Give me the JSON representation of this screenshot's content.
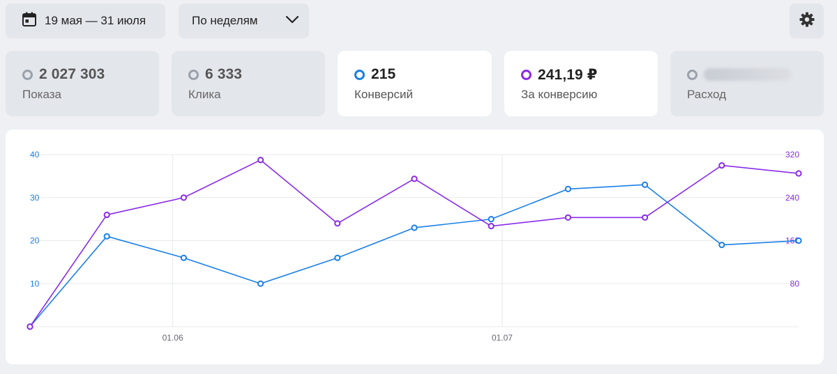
{
  "toolbar": {
    "date_range_label": "19 мая — 31 июля",
    "date_icon": "calendar-icon",
    "period_label": "По неделям",
    "period_icon": "chevron-down-icon",
    "settings_icon": "gear-icon"
  },
  "metrics": [
    {
      "value": "2 027 303",
      "label": "Показа",
      "selected": false,
      "color": "#9ba1aa"
    },
    {
      "value": "6 333",
      "label": "Клика",
      "selected": false,
      "color": "#9ba1aa"
    },
    {
      "value": "215",
      "label": "Конверсий",
      "selected": true,
      "color": "#1a7fe8"
    },
    {
      "value": "241,19 ₽",
      "label": "За конверсию",
      "selected": true,
      "color": "#8a2be8"
    },
    {
      "value": "",
      "label": "Расход",
      "selected": false,
      "color": "#9ba1aa",
      "value_hidden": true
    }
  ],
  "chart_data": {
    "type": "line",
    "x": [
      "19.05",
      "26.05",
      "02.06",
      "09.06",
      "16.06",
      "23.06",
      "30.06",
      "07.07",
      "14.07",
      "21.07",
      "28.07"
    ],
    "x_tick_labels": [
      "01.06",
      "01.07"
    ],
    "series": [
      {
        "values": [
          0,
          21,
          16,
          10,
          16,
          23,
          25,
          32,
          33,
          19,
          20
        ],
        "axis": "left",
        "color": "#1a7fe8"
      },
      {
        "values": [
          0,
          208,
          240,
          310,
          192,
          275,
          187,
          203,
          203,
          300,
          285
        ],
        "axis": "right",
        "color": "#8a2be8"
      }
    ],
    "left_axis": {
      "ticks": [
        10,
        20,
        30,
        40
      ],
      "range": [
        0,
        40
      ],
      "color": "#1a7fe8"
    },
    "right_axis": {
      "ticks": [
        80,
        160,
        240,
        320
      ],
      "range": [
        0,
        320
      ],
      "color": "#8a2be8"
    },
    "grid": true
  }
}
